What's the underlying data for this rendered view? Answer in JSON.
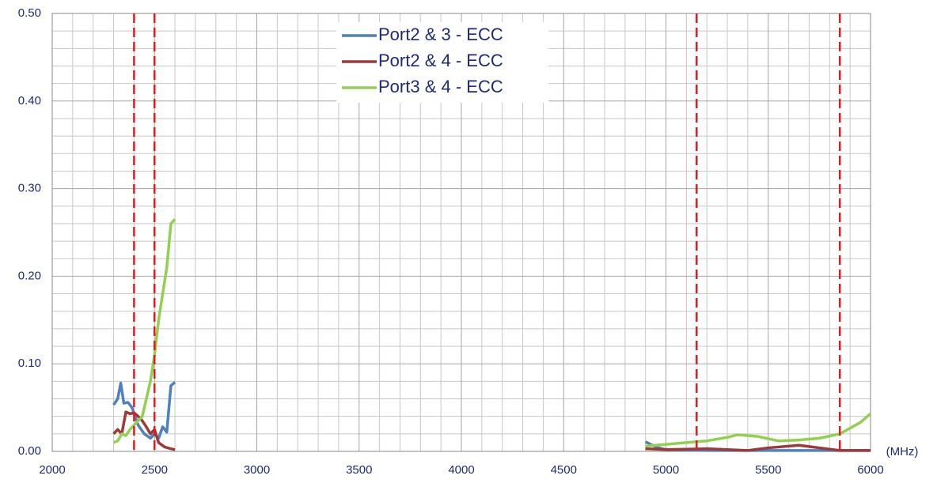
{
  "chart_data": {
    "type": "line",
    "x_label": "(MHz)",
    "xlim": [
      2000,
      6000
    ],
    "xticks": [
      2000,
      2500,
      3000,
      3500,
      4000,
      4500,
      5000,
      5500,
      6000
    ],
    "ylim": [
      0,
      0.5
    ],
    "yticks": [
      {
        "value": 0,
        "label": "0.00"
      },
      {
        "value": 0.1,
        "label": "0.10"
      },
      {
        "value": 0.2,
        "label": "0.20"
      },
      {
        "value": 0.3,
        "label": "0.30"
      },
      {
        "value": 0.4,
        "label": "0.40"
      },
      {
        "value": 0.5,
        "label": "0.50"
      }
    ],
    "grid": true,
    "minor_divisions": 5,
    "legend": "top",
    "reference_lines": {
      "color": "#e41a1c",
      "x": [
        2400,
        2500,
        5150,
        5850
      ]
    },
    "series": [
      {
        "name": "Port2 & 3 - ECC",
        "color": "#4f81bd",
        "x": [
          2300,
          2320,
          2335,
          2350,
          2370,
          2390,
          2420,
          2450,
          2480,
          2500,
          2520,
          2540,
          2560,
          2580,
          2600,
          2700,
          4900,
          4950,
          5000,
          5200,
          5400,
          5600,
          5800,
          6000
        ],
        "values": [
          0.053,
          0.06,
          0.078,
          0.055,
          0.056,
          0.05,
          0.03,
          0.02,
          0.015,
          0.02,
          0.015,
          0.028,
          0.022,
          0.075,
          0.079,
          null,
          0.011,
          0.005,
          0.002,
          0.001,
          0.001,
          0.001,
          0.001,
          0.001
        ]
      },
      {
        "name": "Port2 & 4 - ECC",
        "color": "#9b3a38",
        "x": [
          2300,
          2320,
          2340,
          2360,
          2380,
          2400,
          2420,
          2440,
          2460,
          2480,
          2500,
          2520,
          2550,
          2580,
          2600,
          2700,
          4900,
          5000,
          5200,
          5400,
          5500,
          5650,
          5750,
          5850,
          6000
        ],
        "values": [
          0.02,
          0.025,
          0.02,
          0.045,
          0.043,
          0.044,
          0.04,
          0.035,
          0.028,
          0.02,
          0.025,
          0.01,
          0.005,
          0.003,
          0.002,
          null,
          0.003,
          0.002,
          0.003,
          0.001,
          0.004,
          0.007,
          0.004,
          0.001,
          0.001
        ]
      },
      {
        "name": "Port3 & 4 - ECC",
        "color": "#92d050",
        "x": [
          2300,
          2320,
          2340,
          2360,
          2380,
          2400,
          2440,
          2460,
          2480,
          2500,
          2520,
          2540,
          2560,
          2580,
          2600,
          2700,
          4900,
          5000,
          5100,
          5200,
          5300,
          5350,
          5450,
          5550,
          5650,
          5750,
          5850,
          5950,
          6000
        ],
        "values": [
          0.01,
          0.012,
          0.02,
          0.018,
          0.025,
          0.03,
          0.04,
          0.06,
          0.08,
          0.11,
          0.15,
          0.18,
          0.21,
          0.26,
          0.265,
          null,
          0.006,
          0.008,
          0.01,
          0.012,
          0.016,
          0.019,
          0.017,
          0.012,
          0.013,
          0.015,
          0.02,
          0.033,
          0.043
        ]
      }
    ]
  }
}
